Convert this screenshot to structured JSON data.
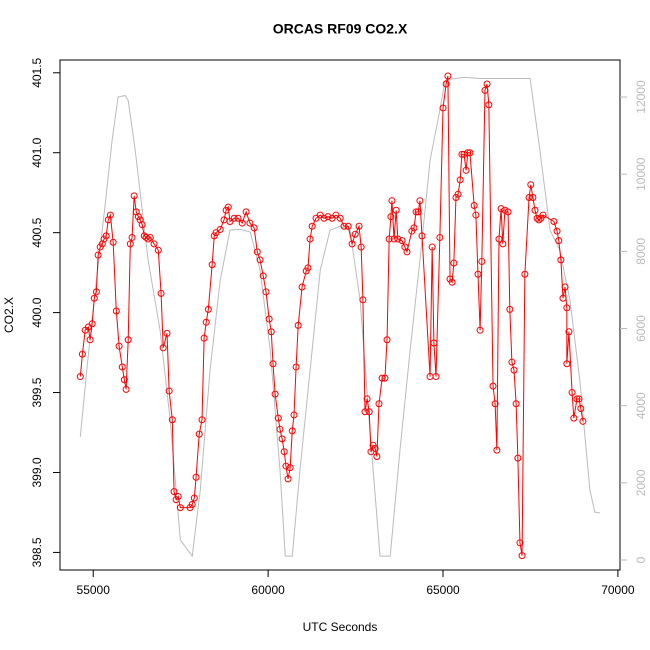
{
  "chart_data": {
    "type": "line",
    "title": "ORCAS RF09 CO2.X",
    "xlabel": "UTC Seconds",
    "ylabel": "CO2.X",
    "xlim": [
      54050,
      70060
    ],
    "xticks": [
      55000,
      60000,
      65000,
      70000
    ],
    "ylim": [
      398.39,
      401.58
    ],
    "yticks": [
      398.5,
      {
        "value": 399,
        "label": "399.0"
      },
      399.5,
      {
        "value": 400,
        "label": "400.0"
      },
      400.5,
      {
        "value": 401,
        "label": "401.0"
      },
      401.5
    ],
    "y2lim": [
      -259,
      12960
    ],
    "y2ticks": [
      0,
      2000,
      4000,
      6000,
      8000,
      10000,
      12000
    ],
    "y2color": "#bbbbbb",
    "series": [
      {
        "color": "#bbbbbb",
        "axis": "y2",
        "marker": "none",
        "x": [
          54630,
          54830,
          55060,
          55340,
          55540,
          55710,
          55910,
          56000,
          56200,
          56570,
          56910,
          57200,
          57490,
          57830,
          58060,
          58340,
          58630,
          58910,
          59200,
          59490,
          59770,
          60060,
          60340,
          60490,
          60690,
          60910,
          61200,
          61490,
          61770,
          62060,
          62340,
          62630,
          62910,
          63200,
          63490,
          63770,
          64060,
          64340,
          64630,
          64910,
          65060,
          65340,
          65630,
          66060,
          66630,
          67490,
          67770,
          68060,
          68340,
          68630,
          68910,
          69200,
          69340,
          69490
        ],
        "values": [
          3190,
          5050,
          7000,
          9200,
          10880,
          12000,
          12040,
          11910,
          10620,
          7770,
          5960,
          3630,
          520,
          100,
          1810,
          4920,
          7250,
          8550,
          8570,
          8500,
          7510,
          5440,
          2330,
          100,
          100,
          2330,
          4920,
          7510,
          8550,
          8650,
          8550,
          6730,
          3370,
          100,
          100,
          2850,
          5440,
          7770,
          10360,
          11660,
          12430,
          12480,
          12510,
          12480,
          12480,
          12480,
          10620,
          8550,
          8030,
          6730,
          4660,
          1810,
          1240,
          1220
        ]
      },
      {
        "color": "#ff0000",
        "axis": "y",
        "marker": "circle",
        "x": [
          54630,
          54690,
          54770,
          54860,
          54910,
          54970,
          55030,
          55090,
          55140,
          55200,
          55260,
          55310,
          55370,
          55430,
          55490,
          55570,
          55660,
          55740,
          55830,
          55890,
          55940,
          56000,
          56060,
          56110,
          56170,
          56230,
          56290,
          56340,
          56400,
          56460,
          56510,
          56570,
          56630,
          56740,
          56860,
          56940,
          57000,
          57110,
          57170,
          57260,
          57310,
          57370,
          57430,
          57490,
          57770,
          57830,
          57890,
          57940,
          58030,
          58110,
          58170,
          58230,
          58290,
          58400,
          58460,
          58510,
          58630,
          58740,
          58800,
          58860,
          58910,
          59030,
          59140,
          59260,
          59370,
          59480,
          59600,
          59690,
          59770,
          59860,
          59940,
          60030,
          60090,
          60140,
          60200,
          60290,
          60340,
          60400,
          60460,
          60510,
          60570,
          60630,
          60690,
          60740,
          60800,
          60860,
          60970,
          61090,
          61140,
          61200,
          61260,
          61370,
          61490,
          61600,
          61710,
          61830,
          61940,
          62060,
          62170,
          62290,
          62400,
          62490,
          62600,
          62660,
          62710,
          62770,
          62830,
          62890,
          62940,
          63000,
          63060,
          63110,
          63170,
          63260,
          63340,
          63400,
          63460,
          63510,
          63540,
          63600,
          63660,
          63710,
          63830,
          63910,
          63970,
          64110,
          64170,
          64230,
          64290,
          64340,
          64400,
          64630,
          64690,
          64740,
          64800,
          64910,
          65000,
          65090,
          65140,
          65200,
          65260,
          65310,
          65370,
          65430,
          65490,
          65540,
          65600,
          65660,
          65710,
          65770,
          65890,
          65940,
          66000,
          66060,
          66110,
          66200,
          66260,
          66310,
          66430,
          66490,
          66540,
          66600,
          66660,
          66710,
          66770,
          66860,
          66910,
          66970,
          67030,
          67090,
          67140,
          67200,
          67260,
          67340,
          67460,
          67510,
          67570,
          67630,
          67690,
          67740,
          67800,
          67860,
          68170,
          68260,
          68310,
          68370,
          68430,
          68490,
          68540,
          68540,
          68600,
          68690,
          68740,
          68830,
          68890,
          68940,
          69000
        ],
        "values": [
          399.6,
          399.74,
          399.89,
          399.91,
          399.83,
          399.93,
          400.09,
          400.13,
          400.36,
          400.41,
          400.43,
          400.46,
          400.48,
          400.58,
          400.61,
          400.44,
          400.01,
          399.79,
          399.66,
          399.58,
          399.52,
          399.83,
          400.43,
          400.47,
          400.73,
          400.63,
          400.6,
          400.58,
          400.55,
          400.48,
          400.47,
          400.46,
          400.47,
          400.43,
          400.39,
          400.12,
          399.78,
          399.87,
          399.51,
          399.33,
          398.88,
          398.83,
          398.85,
          398.78,
          398.78,
          398.8,
          398.84,
          398.97,
          399.24,
          399.33,
          399.84,
          399.94,
          400.02,
          400.3,
          400.48,
          400.5,
          400.52,
          400.58,
          400.64,
          400.66,
          400.57,
          400.59,
          400.59,
          400.56,
          400.63,
          400.56,
          400.53,
          400.38,
          400.33,
          400.23,
          400.13,
          399.96,
          399.88,
          399.68,
          399.49,
          399.34,
          399.27,
          399.21,
          399.13,
          399.04,
          398.96,
          399.03,
          399.26,
          399.36,
          399.66,
          399.92,
          400.16,
          400.26,
          400.28,
          400.46,
          400.54,
          400.59,
          400.61,
          400.59,
          400.6,
          400.59,
          400.61,
          400.59,
          400.54,
          400.54,
          400.43,
          400.49,
          400.54,
          400.41,
          400.08,
          399.38,
          399.46,
          399.38,
          399.13,
          399.17,
          399.15,
          399.1,
          399.43,
          399.59,
          399.59,
          399.83,
          400.46,
          400.6,
          400.7,
          400.46,
          400.64,
          400.46,
          400.45,
          400.41,
          400.38,
          400.51,
          400.53,
          400.63,
          400.63,
          400.7,
          400.48,
          399.6,
          400.41,
          399.81,
          399.6,
          400.47,
          401.28,
          401.43,
          401.48,
          400.21,
          400.19,
          400.31,
          400.72,
          400.74,
          400.83,
          400.99,
          400.99,
          400.89,
          401.0,
          401.0,
          400.67,
          400.61,
          400.24,
          399.89,
          400.32,
          401.39,
          401.43,
          401.3,
          399.54,
          399.43,
          399.14,
          400.46,
          400.65,
          400.43,
          400.64,
          400.63,
          400.02,
          399.69,
          399.64,
          399.43,
          399.09,
          398.56,
          398.48,
          400.24,
          400.72,
          400.8,
          400.72,
          400.64,
          400.59,
          400.58,
          400.59,
          400.61,
          400.57,
          400.51,
          400.45,
          400.33,
          400.09,
          400.16,
          400.03,
          399.68,
          399.88,
          399.5,
          399.34,
          399.46,
          399.46,
          399.4,
          399.32
        ]
      }
    ]
  }
}
